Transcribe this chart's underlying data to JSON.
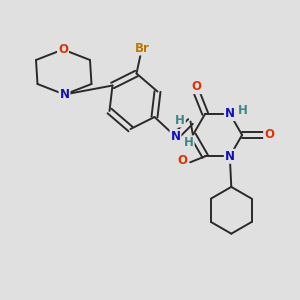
{
  "bg_color": "#e0e0e0",
  "bond_color": "#2a2a2a",
  "bond_width": 1.4,
  "atom_colors": {
    "O": "#dd3300",
    "N": "#1111bb",
    "Br": "#bb7700",
    "H": "#3a8888",
    "C": "#2a2a2a"
  },
  "font_size": 8.5,
  "fig_size": [
    3.0,
    3.0
  ],
  "dpi": 100
}
